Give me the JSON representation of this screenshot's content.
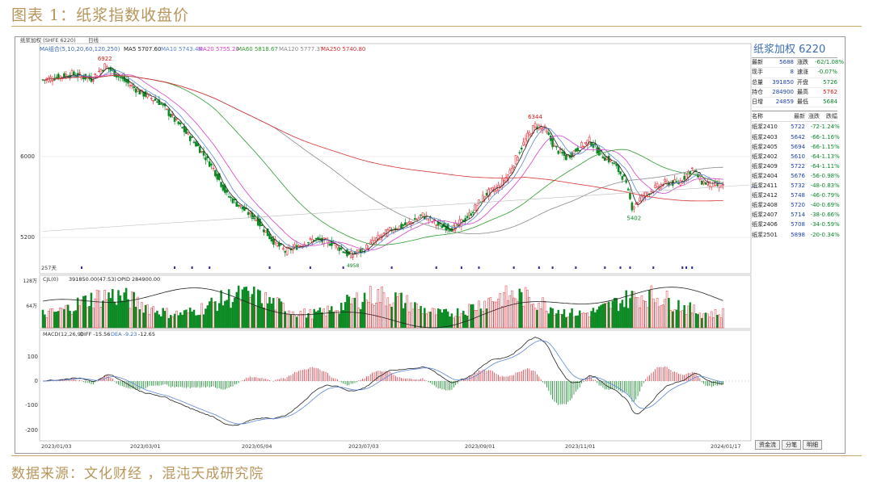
{
  "figure": {
    "title": "图表 1：纸浆指数收盘价",
    "source": "数据来源：文化财经 ，混沌天成研究院"
  },
  "chart_header": {
    "symbol": "纸浆加权 (SHFE 6220)",
    "period": "日线",
    "ma_label": "MA组合(5,10,20,60,120,250)",
    "ma5": "MA5 5707.60",
    "ma10": "MA10 5743.48",
    "ma20": "MA20 5755.20",
    "ma60": "MA60 5818.67",
    "ma120": "MA120 5777.37",
    "ma250": "MA250 5740.80",
    "days_label": "257天"
  },
  "colors": {
    "up": "#e8323c",
    "down": "#0b8a23",
    "ma5": "#222222",
    "ma10": "#5b86d6",
    "ma20": "#d642c8",
    "ma60": "#2e9b2e",
    "ma120": "#8a8a8a",
    "ma250": "#d83030",
    "marker": "#2b2b9a"
  },
  "vol_header": {
    "label": "CJL(0)",
    "value": "391850.00(47:53)",
    "opid": "OPID 284900.00",
    "tick_top": "128万",
    "tick_mid": "64万"
  },
  "macd_header": {
    "label": "MACD(12,26,9)",
    "diff": "DIFF -15.56",
    "dea": "DEA -9.23",
    "macd": "-12.65"
  },
  "chart_data": {
    "type": "candlestick",
    "price_ticks": [
      "6000",
      "5200"
    ],
    "macd_ticks": [
      "100",
      "0",
      "-100",
      "-200"
    ],
    "x_ticks": [
      "2023/01/03",
      "2023/03/01",
      "2023/05/04",
      "2023/07/03",
      "2023/09/01",
      "2023/11/01",
      "2024/01/17"
    ],
    "annotations": [
      {
        "label": "6922",
        "kind": "high",
        "date": "2023/02"
      },
      {
        "label": "6344",
        "kind": "high",
        "date": "2023/09"
      },
      {
        "label": "5402",
        "kind": "low",
        "date": "2023/12"
      },
      {
        "label": "4958",
        "kind": "low",
        "date": "2023/05"
      }
    ],
    "close_path": [
      [
        0,
        6760
      ],
      [
        15,
        6820
      ],
      [
        25,
        6770
      ],
      [
        32,
        6900
      ],
      [
        40,
        6780
      ],
      [
        50,
        6640
      ],
      [
        60,
        6540
      ],
      [
        70,
        6320
      ],
      [
        80,
        6100
      ],
      [
        88,
        5880
      ],
      [
        95,
        5620
      ],
      [
        102,
        5500
      ],
      [
        110,
        5380
      ],
      [
        118,
        5180
      ],
      [
        125,
        5060
      ],
      [
        132,
        5120
      ],
      [
        140,
        5180
      ],
      [
        150,
        5140
      ],
      [
        158,
        5020
      ],
      [
        165,
        5070
      ],
      [
        172,
        5180
      ],
      [
        180,
        5280
      ],
      [
        188,
        5330
      ],
      [
        196,
        5420
      ],
      [
        204,
        5320
      ],
      [
        212,
        5290
      ],
      [
        220,
        5420
      ],
      [
        228,
        5620
      ],
      [
        235,
        5700
      ],
      [
        240,
        5820
      ],
      [
        246,
        6060
      ],
      [
        250,
        6200
      ],
      [
        254,
        6310
      ],
      [
        259,
        6270
      ],
      [
        264,
        6090
      ],
      [
        270,
        5990
      ],
      [
        276,
        6080
      ],
      [
        282,
        6160
      ],
      [
        288,
        6020
      ],
      [
        294,
        5940
      ],
      [
        300,
        5780
      ],
      [
        304,
        5500
      ],
      [
        309,
        5600
      ],
      [
        315,
        5680
      ],
      [
        321,
        5740
      ],
      [
        328,
        5740
      ],
      [
        335,
        5880
      ],
      [
        340,
        5750
      ],
      [
        345,
        5720
      ],
      [
        351,
        5710
      ]
    ],
    "quote": {
      "title": "纸浆加权",
      "code": "6220",
      "rows": [
        {
          "k1": "最新",
          "v1": "5688",
          "k2": "涨跌",
          "v2": "-62/1.08%",
          "c2": "#0a8a2a"
        },
        {
          "k1": "现手",
          "v1": "8",
          "k2": "速涨",
          "v2": "-0.07%",
          "c2": "#0a8a2a"
        },
        {
          "k1": "总量",
          "v1": "391850",
          "k2": "开盘",
          "v2": "5726",
          "c2": "#0a8a2a"
        },
        {
          "k1": "持仓",
          "v1": "284900",
          "k2": "最高",
          "v2": "5762",
          "c2": "#d01818"
        },
        {
          "k1": "日增",
          "v1": "24859",
          "k2": "最低",
          "v2": "5684",
          "c2": "#0a8a2a"
        }
      ]
    },
    "list_header": [
      "名称",
      "最新",
      "涨跌",
      "跌幅"
    ],
    "contracts": [
      {
        "name": "纸浆2410",
        "last": "5722",
        "chg": "-72",
        "pct": "-1.24%"
      },
      {
        "name": "纸浆2403",
        "last": "5642",
        "chg": "-66",
        "pct": "-1.16%"
      },
      {
        "name": "纸浆2405",
        "last": "5694",
        "chg": "-66",
        "pct": "-1.15%"
      },
      {
        "name": "纸浆2402",
        "last": "5610",
        "chg": "-64",
        "pct": "-1.13%"
      },
      {
        "name": "纸浆2409",
        "last": "5722",
        "chg": "-64",
        "pct": "-1.11%"
      },
      {
        "name": "纸浆2404",
        "last": "5676",
        "chg": "-56",
        "pct": "-0.98%"
      },
      {
        "name": "纸浆2411",
        "last": "5732",
        "chg": "-48",
        "pct": "-0.83%"
      },
      {
        "name": "纸浆2412",
        "last": "5748",
        "chg": "-46",
        "pct": "-0.79%"
      },
      {
        "name": "纸浆2408",
        "last": "5720",
        "chg": "-40",
        "pct": "-0.69%"
      },
      {
        "name": "纸浆2407",
        "last": "5714",
        "chg": "-38",
        "pct": "-0.66%"
      },
      {
        "name": "纸浆2406",
        "last": "5708",
        "chg": "-34",
        "pct": "-0.59%"
      },
      {
        "name": "纸浆2501",
        "last": "5898",
        "chg": "-20",
        "pct": "-0.34%"
      }
    ],
    "tabs": [
      "资金流",
      "分笔",
      "明细"
    ]
  }
}
